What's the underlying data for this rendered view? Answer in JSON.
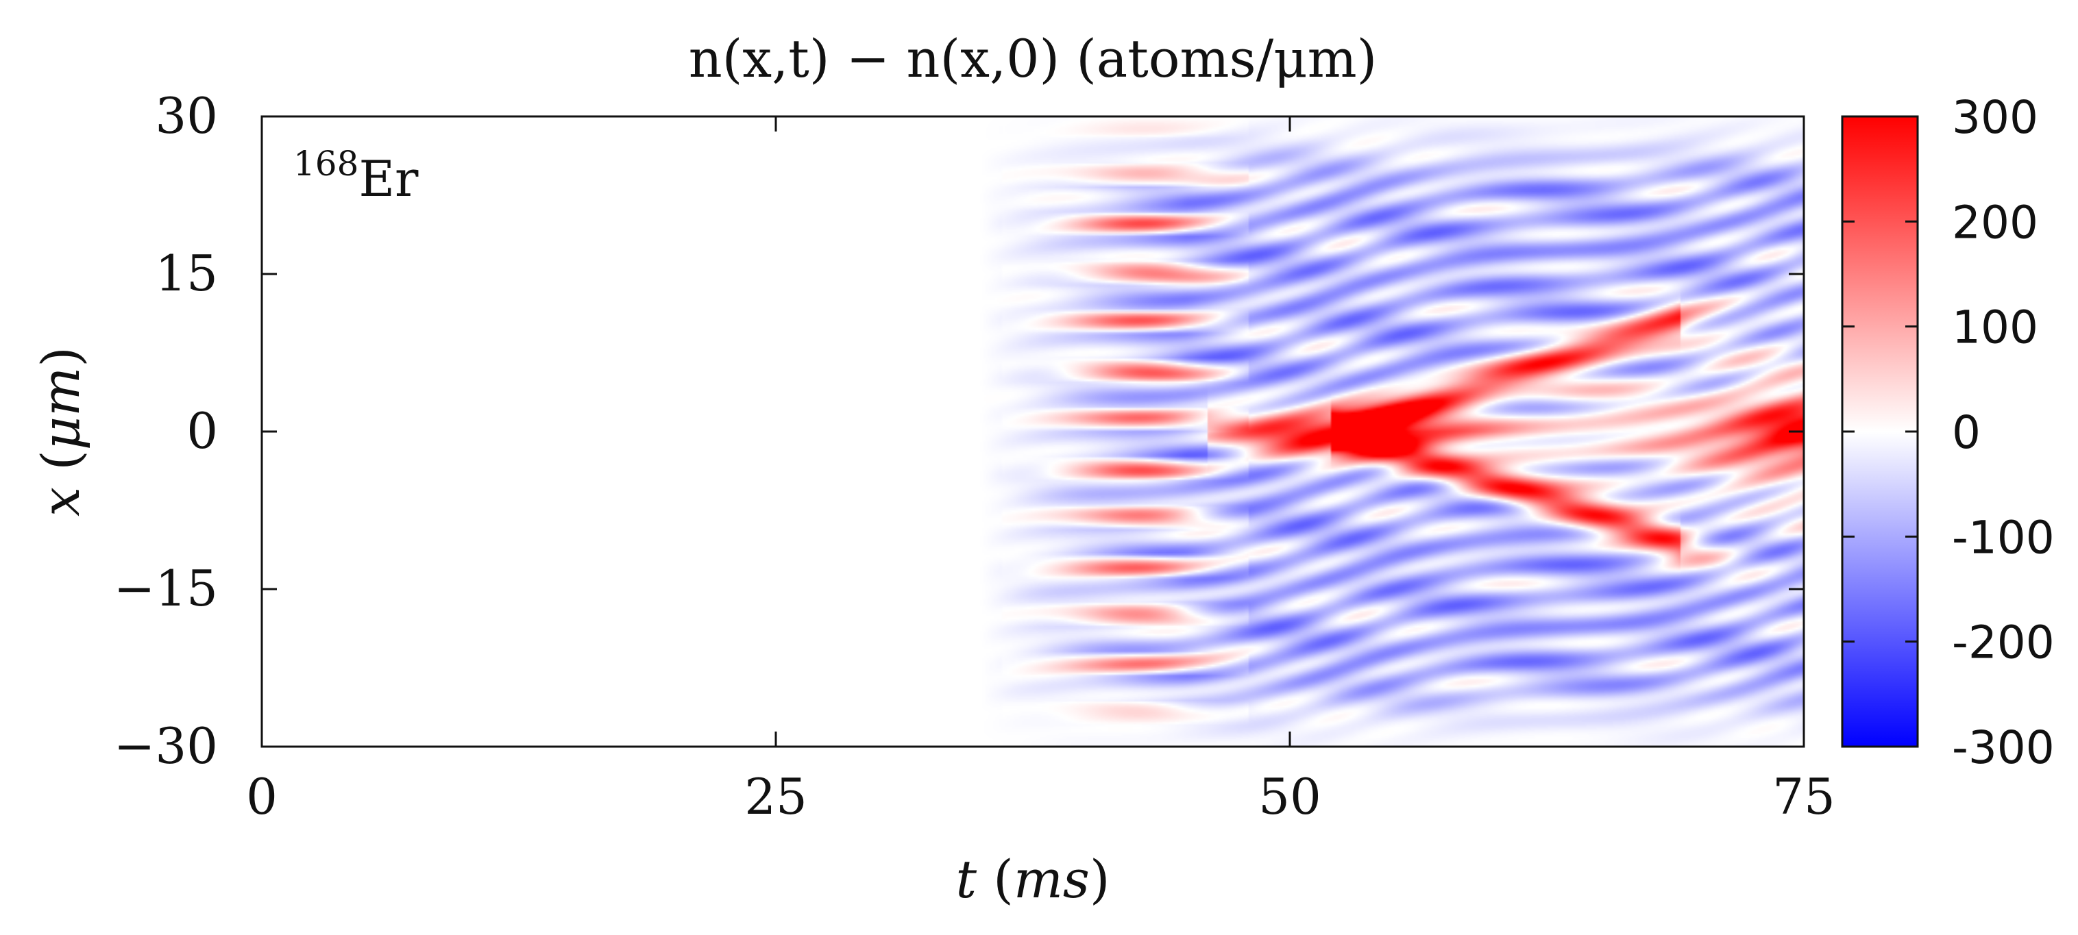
{
  "chart_data": {
    "type": "heatmap",
    "title": "n(x,t) − n(x,0)   (atoms/μm)",
    "annotation": "168Er",
    "annotation_parts": {
      "superscript": "168",
      "base": "Er"
    },
    "xlabel": "t (ms)",
    "ylabel": "x (μm)",
    "xlim": [
      0,
      75
    ],
    "ylim": [
      -30,
      30
    ],
    "x_ticks": [
      "0",
      "25",
      "50",
      "75"
    ],
    "x_tick_values": [
      0,
      25,
      50,
      75
    ],
    "y_ticks": [
      "30",
      "15",
      "0",
      "−15",
      "−30"
    ],
    "y_tick_values": [
      30,
      15,
      0,
      -15,
      -30
    ],
    "colorbar": {
      "range": [
        -300,
        300
      ],
      "ticks": [
        "300",
        "200",
        "100",
        "0",
        "-100",
        "-200",
        "-300"
      ],
      "tick_values": [
        300,
        200,
        100,
        0,
        -100,
        -200,
        -300
      ],
      "colors": {
        "low": "#0000ff",
        "mid": "#ffffff",
        "high": "#ff0000"
      }
    },
    "description_values": {
      "quiet_until_t": 35,
      "central_peak_t": 52,
      "central_peak_value": 300,
      "branch_endpoints_x": [
        10,
        -10
      ],
      "branch_endpoint_t": 68,
      "late_peak_t": 75,
      "late_peak_value": 280,
      "typical_depletion_value": -150
    }
  }
}
